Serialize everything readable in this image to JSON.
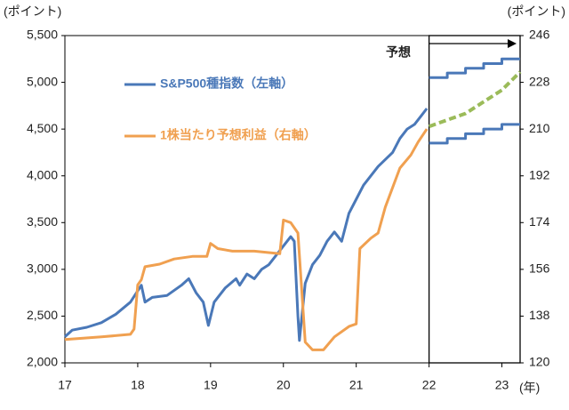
{
  "chart_data": {
    "type": "line",
    "y_label": "(ポイント)",
    "y2_label": "(ポイント)",
    "x_label": "(年)",
    "annotation": "予想",
    "xlim": [
      17,
      23.25
    ],
    "xticks": [
      17,
      18,
      19,
      20,
      21,
      22,
      23
    ],
    "ylim": [
      2000,
      5500
    ],
    "yticks": [
      {
        "value": 2000,
        "label": "2,000"
      },
      {
        "value": 2500,
        "label": "2,500"
      },
      {
        "value": 3000,
        "label": "3,000"
      },
      {
        "value": 3500,
        "label": "3,500"
      },
      {
        "value": 4000,
        "label": "4,000"
      },
      {
        "value": 4500,
        "label": "4,500"
      },
      {
        "value": 5000,
        "label": "5,000"
      },
      {
        "value": 5500,
        "label": "5,500"
      }
    ],
    "y2lim": [
      120,
      246
    ],
    "y2ticks": [
      120,
      138,
      156,
      174,
      192,
      210,
      228,
      246
    ],
    "forecast_start": 22,
    "series": [
      {
        "name": "S&P500種指数（左軸）",
        "color": "#4a78b8",
        "x": [
          17,
          17.1,
          17.3,
          17.5,
          17.7,
          17.9,
          18.05,
          18.1,
          18.2,
          18.4,
          18.6,
          18.7,
          18.8,
          18.9,
          18.97,
          19.05,
          19.2,
          19.35,
          19.4,
          19.5,
          19.6,
          19.7,
          19.8,
          19.9,
          20,
          20.1,
          20.15,
          20.2,
          20.22,
          20.3,
          20.4,
          20.5,
          20.6,
          20.7,
          20.8,
          20.9,
          21,
          21.1,
          21.3,
          21.5,
          21.6,
          21.7,
          21.8,
          21.9,
          21.97
        ],
        "values": [
          2280,
          2350,
          2380,
          2430,
          2520,
          2650,
          2830,
          2650,
          2700,
          2720,
          2830,
          2900,
          2750,
          2650,
          2400,
          2650,
          2800,
          2900,
          2830,
          2950,
          2900,
          3000,
          3050,
          3150,
          3250,
          3350,
          3300,
          2500,
          2240,
          2850,
          3050,
          3150,
          3300,
          3400,
          3300,
          3600,
          3750,
          3900,
          4100,
          4250,
          4400,
          4500,
          4550,
          4650,
          4720
        ]
      },
      {
        "name": "1株当たり予想利益（右軸）",
        "color": "#f0a050",
        "axis": "y2",
        "x": [
          17,
          17.5,
          17.9,
          17.95,
          18,
          18.05,
          18.1,
          18.3,
          18.5,
          18.75,
          18.95,
          19,
          19.1,
          19.3,
          19.6,
          19.95,
          20,
          20.1,
          20.2,
          20.3,
          20.4,
          20.55,
          20.7,
          20.9,
          21,
          21.05,
          21.2,
          21.3,
          21.4,
          21.6,
          21.75,
          21.85,
          21.97
        ],
        "values": [
          129,
          130,
          131,
          133,
          150,
          152,
          157,
          158,
          160,
          161,
          161,
          166,
          164,
          163,
          163,
          162,
          175,
          174,
          170,
          128,
          125,
          125,
          130,
          134,
          135,
          164,
          168,
          170,
          180,
          195,
          200,
          205,
          210
        ]
      },
      {
        "color": "#4a78b8",
        "x": [
          22,
          22.25,
          22.25,
          22.5,
          22.5,
          22.75,
          22.75,
          23,
          23,
          23.25
        ],
        "values": [
          5050,
          5050,
          5100,
          5100,
          5150,
          5150,
          5200,
          5200,
          5250,
          5250
        ]
      },
      {
        "color": "#4a78b8",
        "x": [
          22,
          22.25,
          22.25,
          22.5,
          22.5,
          22.75,
          22.75,
          23,
          23,
          23.25
        ],
        "values": [
          4350,
          4350,
          4400,
          4400,
          4450,
          4450,
          4500,
          4500,
          4550,
          4550
        ]
      },
      {
        "color": "#9bbb59",
        "axis": "y2",
        "dashed": true,
        "x": [
          22,
          22.5,
          23,
          23.25
        ],
        "values": [
          211,
          216,
          225,
          232
        ]
      }
    ]
  }
}
